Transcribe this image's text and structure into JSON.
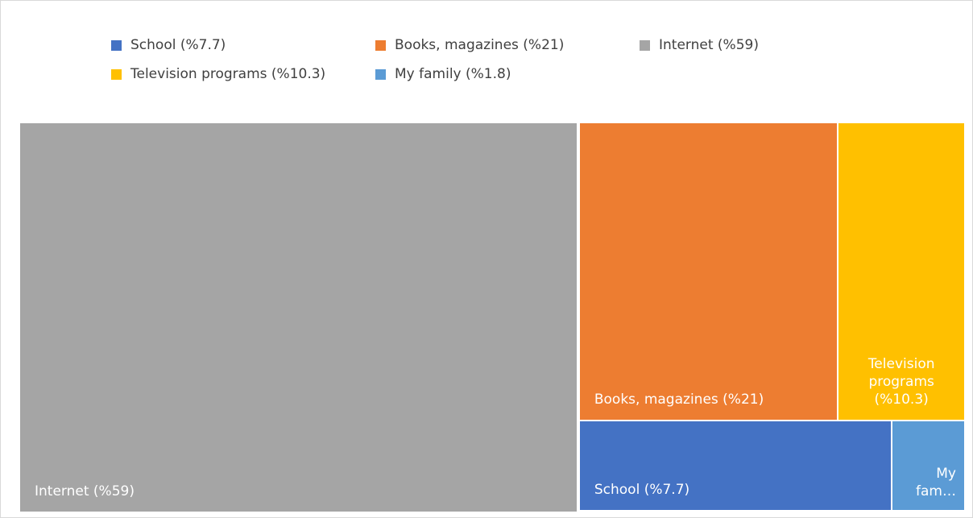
{
  "chart_data": {
    "type": "treemap",
    "categories": [
      "School (%7.7)",
      "Books, magazines (%21)",
      "Internet (%59)",
      "Television programs (%10.3)",
      "My family (%1.8)"
    ],
    "values": [
      7.7,
      21,
      59,
      10.3,
      1.8
    ],
    "tile_labels": [
      "School (%7.7)",
      "Books, magazines (%21)",
      "Internet (%59)",
      "Television programs (%10.3)",
      "My fam…"
    ],
    "colors": [
      "#4472c4",
      "#ed7d31",
      "#a5a5a5",
      "#ffc000",
      "#5b9bd5"
    ],
    "legend": "top"
  }
}
